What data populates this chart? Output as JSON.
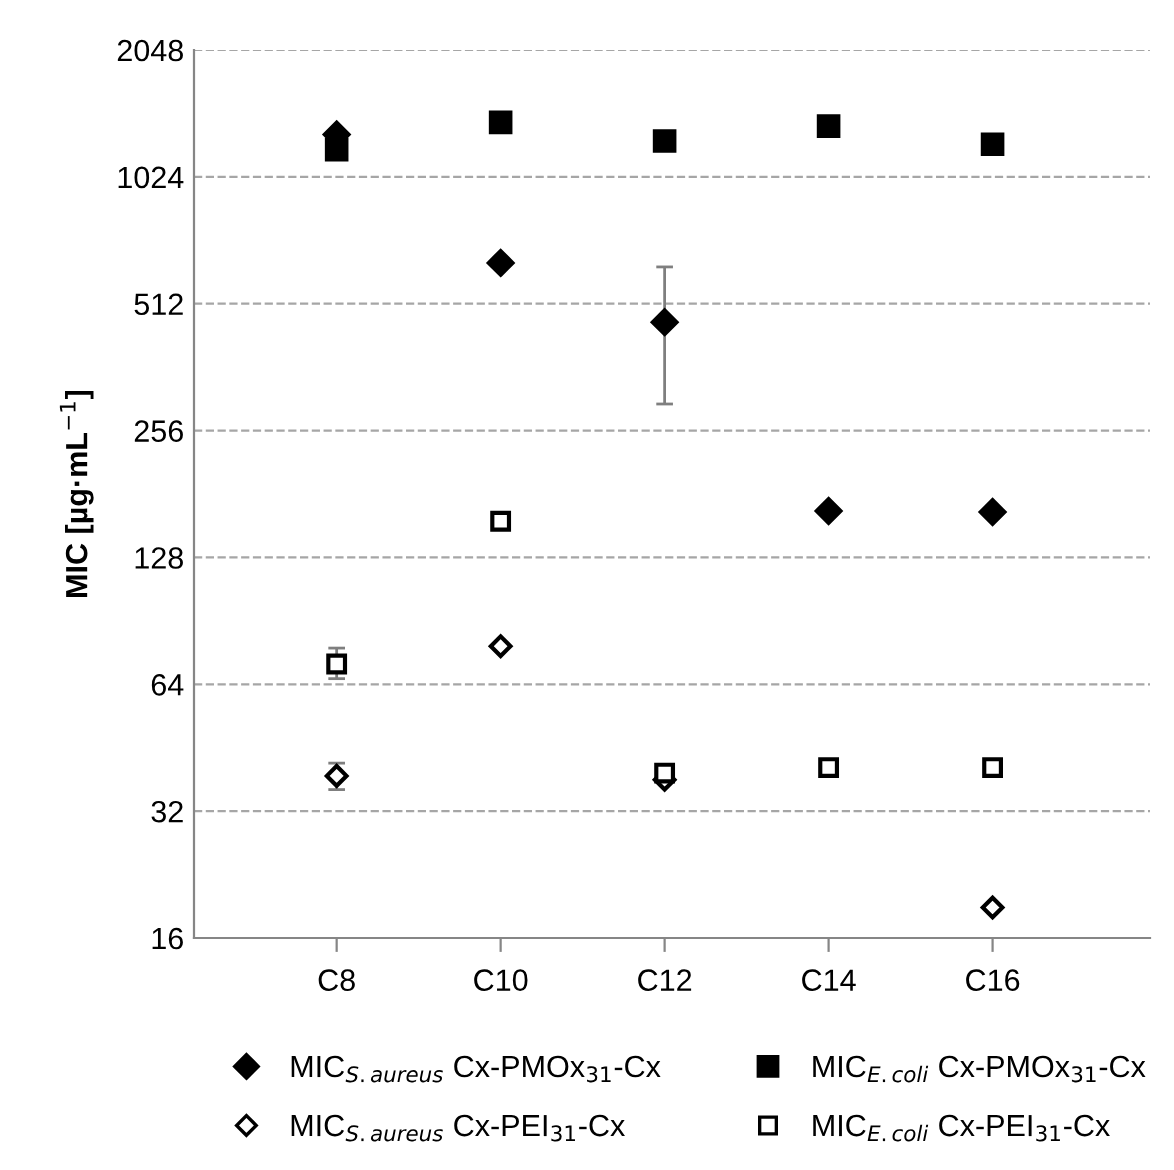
{
  "chart_data": {
    "type": "scatter",
    "ylabel": "MIC [µg·mL$^{−1}$]",
    "categories": [
      "C8",
      "C10",
      "C12",
      "C14",
      "C16"
    ],
    "log": "y",
    "ylim": [
      16,
      2048
    ],
    "yticks": [
      16,
      32,
      64,
      128,
      256,
      512,
      1024,
      2048
    ],
    "grid": "y",
    "legend": "bottom",
    "series": [
      {
        "name": "MIC$_{S.aureus}$ Cx-PMOx$_{31}$-Cx",
        "color": "#000000",
        "marker": "diamond",
        "values": [
          1290,
          640,
          463,
          165,
          164
        ],
        "errors": [
          null,
          null,
          [
            296,
            626
          ],
          null,
          null
        ]
      },
      {
        "name": "MIC$_{E.coli}$ Cx-PMOx$_{31}$-Cx",
        "color": "#000000",
        "marker": "square",
        "values": [
          1188,
          1379,
          1246,
          1351,
          1224
        ]
      },
      {
        "name": "MIC$_{S.aureus}$ Cx-PEI$_{31}$-Cx",
        "color": "#000000",
        "marker": "diamond",
        "values": [
          38.8,
          78.8,
          38,
          null,
          18.9
        ],
        "errors": [
          [
            36,
            41.6
          ],
          null,
          null,
          null,
          null
        ]
      },
      {
        "name": "MIC$_{E.coli}$ Cx-PEI$_{31}$-Cx",
        "color": "#000000",
        "marker": "square",
        "values": [
          71.5,
          156,
          39.4,
          40.6,
          40.6
        ],
        "errors": [
          [
            66,
            78
          ],
          null,
          null,
          null,
          null
        ]
      }
    ]
  }
}
